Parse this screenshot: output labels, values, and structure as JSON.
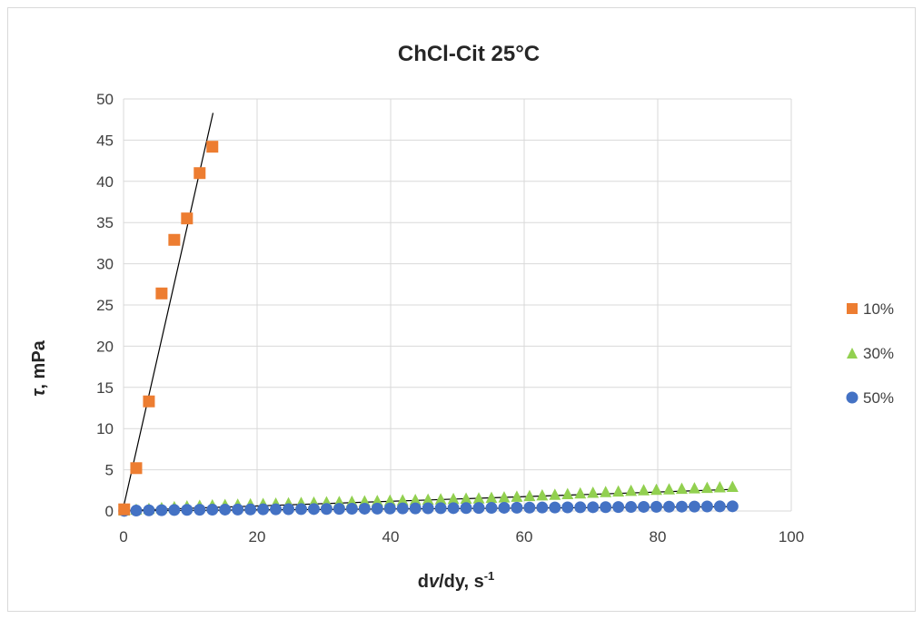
{
  "chart_data": {
    "type": "scatter",
    "title": "ChCl-Cit 25°C",
    "xlabel": {
      "pre": "d",
      "italic": "v",
      "post": "/dy, s",
      "sup": "-1"
    },
    "ylabel": {
      "italic": "τ",
      "post": ", mPa"
    },
    "xlim": [
      0,
      100
    ],
    "ylim": [
      0,
      50
    ],
    "xticks": [
      0,
      20,
      40,
      60,
      80,
      100
    ],
    "yticks": [
      0,
      5,
      10,
      15,
      20,
      25,
      30,
      35,
      40,
      45,
      50
    ],
    "grid": true,
    "legend_position": "right",
    "series": [
      {
        "name": "10%",
        "marker": "square",
        "color": "#ED7D31",
        "x": [
          0.1,
          1.9,
          3.8,
          5.7,
          7.6,
          9.5,
          11.4,
          13.3
        ],
        "y": [
          0.2,
          5.2,
          13.3,
          26.4,
          32.9,
          35.5,
          41.0,
          44.2
        ],
        "trendline": {
          "x": [
            0,
            13.4
          ],
          "y": [
            0.5,
            48.3
          ]
        }
      },
      {
        "name": "30%",
        "marker": "triangle",
        "color": "#92D050",
        "x": [
          0.1,
          1.9,
          3.8,
          5.7,
          7.6,
          9.5,
          11.4,
          13.3,
          15.2,
          17.1,
          19.0,
          20.9,
          22.8,
          24.7,
          26.6,
          28.5,
          30.4,
          32.3,
          34.2,
          36.1,
          38.0,
          39.9,
          41.8,
          43.7,
          45.6,
          47.5,
          49.4,
          51.3,
          53.2,
          55.1,
          57.0,
          58.9,
          60.8,
          62.7,
          64.6,
          66.5,
          68.4,
          70.3,
          72.2,
          74.1,
          76.0,
          77.9,
          79.8,
          81.7,
          83.6,
          85.5,
          87.4,
          89.3,
          91.2
        ],
        "y": [
          0.05,
          0.15,
          0.25,
          0.35,
          0.45,
          0.55,
          0.62,
          0.68,
          0.72,
          0.76,
          0.8,
          0.84,
          0.88,
          0.92,
          0.96,
          1.0,
          1.04,
          1.08,
          1.12,
          1.16,
          1.2,
          1.24,
          1.28,
          1.32,
          1.36,
          1.4,
          1.44,
          1.48,
          1.52,
          1.58,
          1.64,
          1.72,
          1.8,
          1.88,
          1.96,
          2.04,
          2.12,
          2.2,
          2.28,
          2.36,
          2.44,
          2.5,
          2.56,
          2.62,
          2.68,
          2.74,
          2.8,
          2.86,
          2.92
        ],
        "trendline": {
          "x": [
            0,
            91.2
          ],
          "y": [
            0.05,
            2.62
          ]
        }
      },
      {
        "name": "50%",
        "marker": "circle",
        "color": "#4472C4",
        "x": [
          0.1,
          1.9,
          3.8,
          5.7,
          7.6,
          9.5,
          11.4,
          13.3,
          15.2,
          17.1,
          19.0,
          20.9,
          22.8,
          24.7,
          26.6,
          28.5,
          30.4,
          32.3,
          34.2,
          36.1,
          38.0,
          39.9,
          41.8,
          43.7,
          45.6,
          47.5,
          49.4,
          51.3,
          53.2,
          55.1,
          57.0,
          58.9,
          60.8,
          62.7,
          64.6,
          66.5,
          68.4,
          70.3,
          72.2,
          74.1,
          76.0,
          77.9,
          79.8,
          81.7,
          83.6,
          85.5,
          87.4,
          89.3,
          91.2
        ],
        "y": [
          0.02,
          0.05,
          0.08,
          0.1,
          0.12,
          0.14,
          0.15,
          0.16,
          0.17,
          0.18,
          0.19,
          0.2,
          0.21,
          0.22,
          0.23,
          0.24,
          0.25,
          0.26,
          0.27,
          0.28,
          0.29,
          0.3,
          0.31,
          0.32,
          0.33,
          0.34,
          0.35,
          0.36,
          0.37,
          0.38,
          0.39,
          0.4,
          0.41,
          0.42,
          0.43,
          0.44,
          0.45,
          0.46,
          0.47,
          0.48,
          0.49,
          0.5,
          0.51,
          0.52,
          0.53,
          0.54,
          0.55,
          0.56,
          0.57
        ],
        "trendline": {
          "x": [
            0,
            91.2
          ],
          "y": [
            0.02,
            0.52
          ]
        }
      }
    ]
  }
}
